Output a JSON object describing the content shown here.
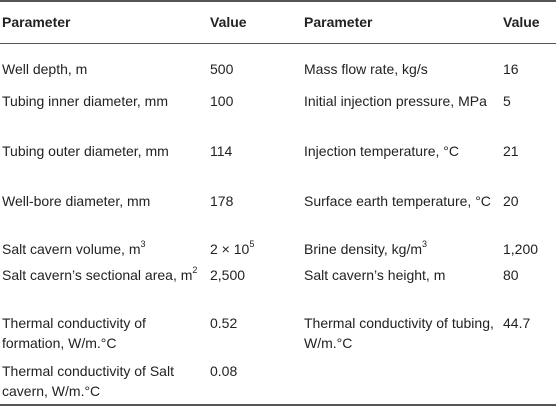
{
  "header": {
    "parameter_left": "Parameter",
    "value_left": "Value",
    "parameter_right": "Parameter",
    "value_right": "Value"
  },
  "rows": [
    {
      "lp": "Well depth, m",
      "lv": "500",
      "rp": "Mass flow rate, kg/s",
      "rv": "16"
    },
    {
      "lp": "Tubing inner diameter, mm",
      "lv": "100",
      "rp": "Initial injection pressure, MPa",
      "rv": "5"
    },
    {
      "lp": "Tubing outer diameter, mm",
      "lv": "114",
      "rp": "Injection temperature, °C",
      "rv": "21"
    },
    {
      "lp": "Well-bore diameter, mm",
      "lv": "178",
      "rp": "Surface earth temperature, °C",
      "rv": "20"
    },
    {
      "lp": "Salt cavern volume, m",
      "lp_sup": "3",
      "lv": "2 × 10",
      "lv_sup": "5",
      "rp": "Brine density, kg/m",
      "rp_sup": "3",
      "rv": "1,200"
    },
    {
      "lp": "Salt cavern’s sectional area, m",
      "lp_sup": "2",
      "lv": "2,500",
      "rp": "Salt cavern’s height, m",
      "rv": "80"
    },
    {
      "lp": "Thermal conductivity of formation, W/m.°C",
      "lv": "0.52",
      "rp": "Thermal conductivity of tubing, W/m.°C",
      "rv": "44.7"
    },
    {
      "lp": "Thermal conductivity of Salt cavern, W/m.°C",
      "lv": "0.08",
      "rp": "",
      "rv": ""
    }
  ]
}
